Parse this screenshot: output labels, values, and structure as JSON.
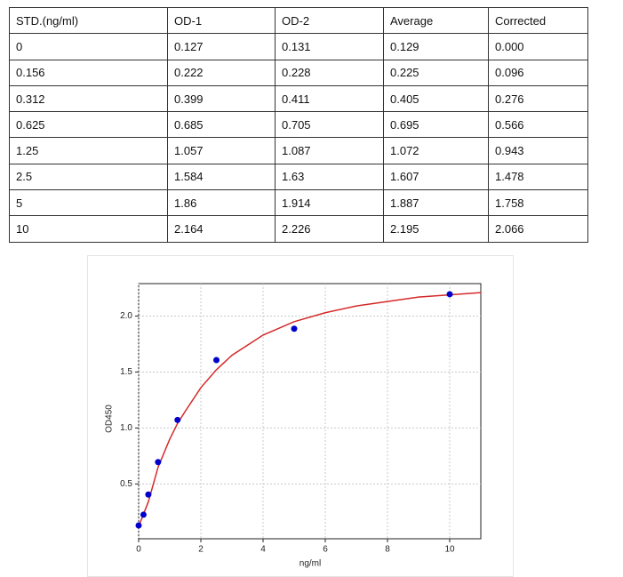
{
  "table": {
    "header": [
      "STD.(ng/ml)",
      "OD-1",
      "OD-2",
      "Average",
      "Corrected"
    ],
    "rows": [
      [
        "0",
        "0.127",
        "0.131",
        "0.129",
        "0.000"
      ],
      [
        "0.156",
        "0.222",
        "0.228",
        "0.225",
        "0.096"
      ],
      [
        "0.312",
        "0.399",
        "0.411",
        "0.405",
        "0.276"
      ],
      [
        "0.625",
        "0.685",
        "0.705",
        "0.695",
        "0.566"
      ],
      [
        "1.25",
        "1.057",
        "1.087",
        "1.072",
        "0.943"
      ],
      [
        "2.5",
        "1.584",
        "1.63",
        "1.607",
        "1.478"
      ],
      [
        "5",
        "1.86",
        "1.914",
        "1.887",
        "1.758"
      ],
      [
        "10",
        "2.164",
        "2.226",
        "2.195",
        "2.066"
      ]
    ]
  },
  "chart_data": {
    "type": "scatter",
    "xlabel": "ng/ml",
    "ylabel": "OD450",
    "xlim": [
      0,
      11
    ],
    "ylim": [
      0.01,
      2.29
    ],
    "xticks": [
      0,
      2,
      4,
      6,
      8,
      10
    ],
    "yticks": [
      0.5,
      {
        "value": 1.0,
        "label": "1.0"
      },
      1.5,
      {
        "value": 2.0,
        "label": "2.0"
      }
    ],
    "grid": true,
    "series": [
      {
        "type": "line",
        "color": "#d42a2a",
        "x": [
          0,
          0.156,
          0.312,
          0.625,
          1,
          1.25,
          1.5,
          2,
          2.5,
          3,
          4,
          5,
          6,
          7,
          8,
          9,
          10,
          11
        ],
        "values": [
          0.12,
          0.23,
          0.34,
          0.65,
          0.9,
          1.04,
          1.15,
          1.36,
          1.52,
          1.65,
          1.83,
          1.95,
          2.03,
          2.09,
          2.13,
          2.17,
          2.19,
          2.21
        ]
      },
      {
        "type": "scatter",
        "color": "#0000cc",
        "x": [
          0,
          0.156,
          0.312,
          0.625,
          1.25,
          2.5,
          5,
          10
        ],
        "values": [
          0.129,
          0.225,
          0.405,
          0.695,
          1.072,
          1.607,
          1.887,
          2.195
        ]
      }
    ]
  }
}
